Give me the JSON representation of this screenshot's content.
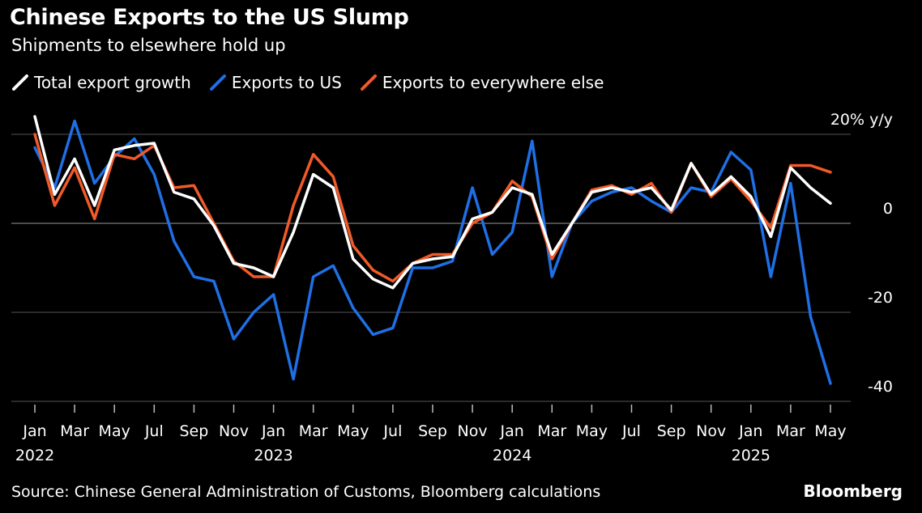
{
  "colors": {
    "total": "#ffffff",
    "us": "#1f6fe5",
    "else": "#f05a28",
    "background": "#000000",
    "grid": "#555555"
  },
  "chart_data": {
    "type": "line",
    "title": "Chinese Exports to the US Slump",
    "subtitle": "Shipments to elsewhere hold up",
    "ylabel": "20% y/y",
    "ylim": [
      -40,
      25
    ],
    "yticks": [
      {
        "value": 20,
        "label": "20% y/y"
      },
      {
        "value": 0,
        "label": "0"
      },
      {
        "value": -20,
        "label": "-20"
      },
      {
        "value": -40,
        "label": "-40"
      }
    ],
    "x_tick_labels": [
      "Jan",
      "Mar",
      "May",
      "Jul",
      "Sep",
      "Nov",
      "Jan",
      "Mar",
      "May",
      "Jul",
      "Sep",
      "Nov",
      "Jan",
      "Mar",
      "May",
      "Jul",
      "Sep",
      "Nov",
      "Jan",
      "Mar",
      "May"
    ],
    "x_tick_indices": [
      0,
      2,
      4,
      6,
      8,
      10,
      12,
      14,
      16,
      18,
      20,
      22,
      24,
      26,
      28,
      30,
      32,
      34,
      36,
      38,
      40
    ],
    "year_labels": [
      {
        "label": "2022",
        "index": 0
      },
      {
        "label": "2023",
        "index": 12
      },
      {
        "label": "2024",
        "index": 24
      },
      {
        "label": "2025",
        "index": 36
      }
    ],
    "series": [
      {
        "name": "Total export growth",
        "key": "total",
        "values": [
          24,
          6.5,
          14.5,
          4,
          16.5,
          17.5,
          18,
          7,
          5.5,
          -0.5,
          -9,
          -10,
          -12,
          -2,
          11,
          8,
          -8,
          -12.5,
          -14.5,
          -9,
          -8,
          -7.5,
          1,
          2.5,
          8,
          6.5,
          -7,
          0,
          7,
          8,
          7,
          8,
          3,
          13.5,
          6.5,
          10.5,
          6,
          -3,
          12.5,
          8,
          4.5
        ]
      },
      {
        "name": "Exports to US",
        "key": "us",
        "values": [
          17,
          8,
          23,
          9,
          15,
          19,
          11,
          -4,
          -12,
          -13,
          -26,
          -20,
          -16,
          -35,
          -12,
          -9.5,
          -19,
          -25,
          -23.5,
          -10,
          -10,
          -8.5,
          8,
          -7,
          -2,
          18.5,
          -12,
          0,
          5,
          7,
          8,
          5,
          2.5,
          8,
          7,
          16,
          12,
          -12,
          9,
          -21,
          -36
        ]
      },
      {
        "name": "Exports to everywhere else",
        "key": "else",
        "values": [
          20,
          4,
          12.5,
          1,
          15.5,
          14.5,
          17.5,
          8,
          8.5,
          0,
          -8.5,
          -12,
          -12,
          4,
          15.5,
          10.5,
          -5,
          -10.5,
          -13,
          -9,
          -7,
          -7,
          0,
          2.5,
          9.5,
          6,
          -8,
          0,
          7.5,
          8.5,
          6.5,
          9,
          2.5,
          13.5,
          6,
          10,
          5,
          -1,
          13,
          13,
          11.5
        ]
      }
    ]
  },
  "legend": [
    {
      "label": "Total export growth",
      "key": "total"
    },
    {
      "label": "Exports to US",
      "key": "us"
    },
    {
      "label": "Exports to everywhere else",
      "key": "else"
    }
  ],
  "footer": {
    "source": "Source: Chinese General Administration of Customs, Bloomberg calculations",
    "brand": "Bloomberg"
  }
}
